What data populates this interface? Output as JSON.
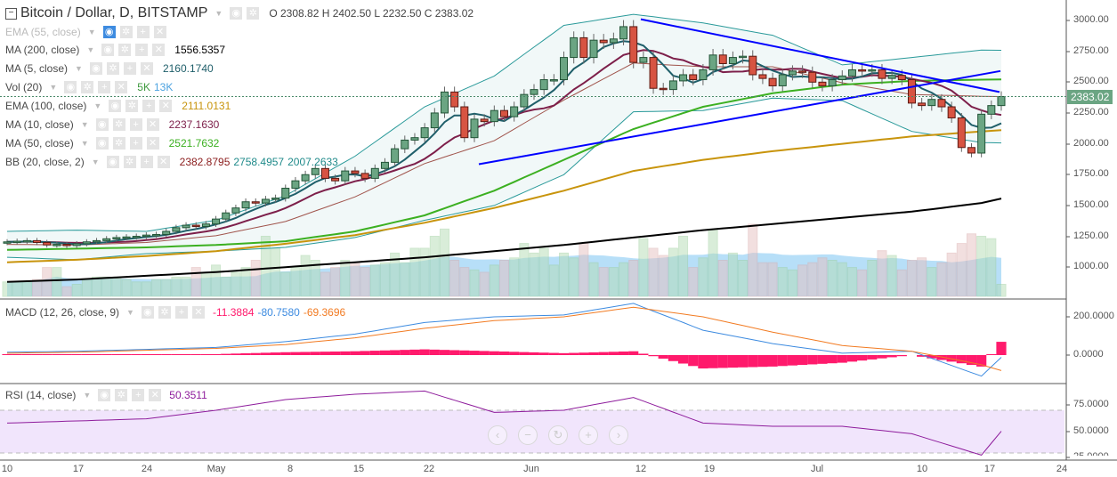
{
  "header": {
    "symbol": "Bitcoin / Dollar, D, BITSTAMP",
    "ohlc": "O 2308.82 H 2402.50 L 2232.50 C 2383.02"
  },
  "indicators": [
    {
      "name": "EMA (55, close)",
      "values": [],
      "color": "#aaaaaa",
      "hidden": true
    },
    {
      "name": "MA (200, close)",
      "values": [
        "1556.5357"
      ],
      "color": "#000000"
    },
    {
      "name": "MA (5, close)",
      "values": [
        "2160.1740"
      ],
      "color": "#1f5f6a"
    },
    {
      "name": "Vol (20)",
      "values": [
        "5K",
        "13K"
      ],
      "colors": [
        "#3f9a3f",
        "#4da3e0"
      ]
    },
    {
      "name": "EMA (100, close)",
      "values": [
        "2111.0131"
      ],
      "color": "#c8940c"
    },
    {
      "name": "MA (10, close)",
      "values": [
        "2237.1630"
      ],
      "color": "#7d1f4a"
    },
    {
      "name": "MA (50, close)",
      "values": [
        "2521.7632"
      ],
      "color": "#3cb021"
    },
    {
      "name": "BB (20, close, 2)",
      "values": [
        "2382.8795",
        "2758.4957",
        "2007.2633"
      ],
      "colors": [
        "#8b1c1c",
        "#1f8a8a",
        "#1f8a8a"
      ]
    }
  ],
  "macd": {
    "name": "MACD (12, 26, close, 9)",
    "values": [
      "-11.3884",
      "-80.7580",
      "-69.3696"
    ],
    "colors": [
      "#ff1a6c",
      "#3d8be0",
      "#f27b22"
    ]
  },
  "rsi": {
    "name": "RSI (14, close)",
    "value": "50.3511",
    "color": "#8e1c9c"
  },
  "last_price": "2383.02",
  "price_axis": [
    "3000.00",
    "2750.00",
    "2500.00",
    "2250.00",
    "2000.00",
    "1750.00",
    "1500.00",
    "1250.00",
    "1000.00"
  ],
  "macd_axis": [
    "200.0000",
    "0.0000"
  ],
  "rsi_axis": [
    "75.0000",
    "50.0000",
    "25.0000"
  ],
  "time_axis": [
    "10",
    "17",
    "24",
    "May",
    "8",
    "15",
    "22",
    "Jun",
    "12",
    "19",
    "Jul",
    "10",
    "17",
    "24"
  ],
  "nav_buttons": [
    "‹",
    "−",
    "↻",
    "+",
    "›"
  ],
  "chart_data": {
    "type": "candlestick",
    "title": "Bitcoin / Dollar, D, BITSTAMP",
    "x_start": "Apr 10",
    "x_end": "Jul 19",
    "ylim": [
      800,
      3100
    ],
    "close": [
      1205,
      1210,
      1215,
      1200,
      1180,
      1185,
      1175,
      1190,
      1205,
      1215,
      1230,
      1240,
      1245,
      1250,
      1260,
      1265,
      1290,
      1320,
      1340,
      1330,
      1350,
      1390,
      1440,
      1480,
      1530,
      1520,
      1550,
      1560,
      1640,
      1700,
      1750,
      1800,
      1720,
      1700,
      1780,
      1760,
      1720,
      1800,
      1850,
      1960,
      2030,
      2050,
      2130,
      2250,
      2420,
      2300,
      2050,
      2200,
      2180,
      2270,
      2220,
      2300,
      2400,
      2440,
      2520,
      2520,
      2700,
      2860,
      2700,
      2840,
      2820,
      2850,
      2950,
      2660,
      2700,
      2450,
      2440,
      2510,
      2560,
      2520,
      2600,
      2720,
      2650,
      2700,
      2710,
      2560,
      2530,
      2470,
      2560,
      2590,
      2580,
      2500,
      2470,
      2520,
      2550,
      2600,
      2590,
      2600,
      2530,
      2555,
      2520,
      2330,
      2310,
      2360,
      2300,
      2210,
      1970,
      1925,
      2240,
      2310,
      2383.02
    ],
    "volume_k": [
      6,
      6,
      6,
      7,
      12,
      12,
      4,
      5,
      7,
      8,
      8,
      8,
      7,
      6,
      6,
      7,
      7,
      8,
      8,
      12,
      10,
      13,
      8,
      10,
      12,
      15,
      25,
      20,
      10,
      12,
      17,
      15,
      10,
      12,
      15,
      14,
      12,
      13,
      14,
      18,
      14,
      20,
      20,
      25,
      28,
      15,
      12,
      11,
      10,
      13,
      15,
      16,
      22,
      18,
      20,
      13,
      18,
      16,
      22,
      14,
      12,
      12,
      14,
      15,
      24,
      20,
      17,
      20,
      25,
      12,
      16,
      28,
      15,
      18,
      15,
      30,
      14,
      14,
      12,
      11,
      13,
      14,
      16,
      15,
      14,
      12,
      11,
      15,
      19,
      17,
      11,
      15,
      16,
      12,
      14,
      18,
      22,
      26,
      25,
      24,
      5
    ],
    "sample_index": [
      0,
      7,
      14,
      21,
      28,
      35,
      42,
      49,
      56,
      63,
      70,
      77,
      84,
      91,
      98,
      100
    ],
    "ma200": [
      880,
      900,
      930,
      960,
      1000,
      1040,
      1080,
      1130,
      1180,
      1240,
      1300,
      1350,
      1400,
      1450,
      1520,
      1556.5
    ],
    "ema100": [
      1040,
      1060,
      1090,
      1130,
      1190,
      1260,
      1360,
      1480,
      1620,
      1780,
      1870,
      1940,
      2000,
      2060,
      2100,
      2111
    ],
    "ma50": [
      1140,
      1150,
      1160,
      1180,
      1210,
      1290,
      1420,
      1620,
      1870,
      2120,
      2300,
      2410,
      2480,
      2510,
      2520,
      2521.8
    ],
    "bb_upper": [
      1290,
      1300,
      1290,
      1380,
      1580,
      1900,
      2300,
      2550,
      2960,
      3050,
      2980,
      2880,
      2640,
      2700,
      2760,
      2758.5
    ],
    "bb_lower": [
      1080,
      1060,
      1110,
      1130,
      1160,
      1240,
      1380,
      1500,
      1750,
      2260,
      2270,
      2370,
      2350,
      2100,
      2010,
      2007.3
    ],
    "macd_line": [
      15,
      20,
      30,
      40,
      70,
      110,
      170,
      200,
      210,
      270,
      130,
      60,
      10,
      20,
      -110,
      -11.4
    ],
    "macd_signal": [
      10,
      15,
      25,
      35,
      55,
      90,
      140,
      180,
      200,
      250,
      200,
      120,
      50,
      20,
      -50,
      -80.8
    ],
    "rsi": [
      58,
      60,
      62,
      70,
      80,
      85,
      88,
      68,
      70,
      82,
      58,
      55,
      55,
      48,
      28,
      50.35
    ],
    "trendlines": [
      {
        "from": [
          "Jun 12",
          3010
        ],
        "to": [
          "Jul 18",
          2420
        ]
      },
      {
        "from": [
          "May 26",
          1835
        ],
        "to": [
          "Jul 18",
          2590
        ]
      }
    ],
    "colors": {
      "up": "#6ba583",
      "down": "#d75442",
      "trend": "#0000ff"
    }
  }
}
